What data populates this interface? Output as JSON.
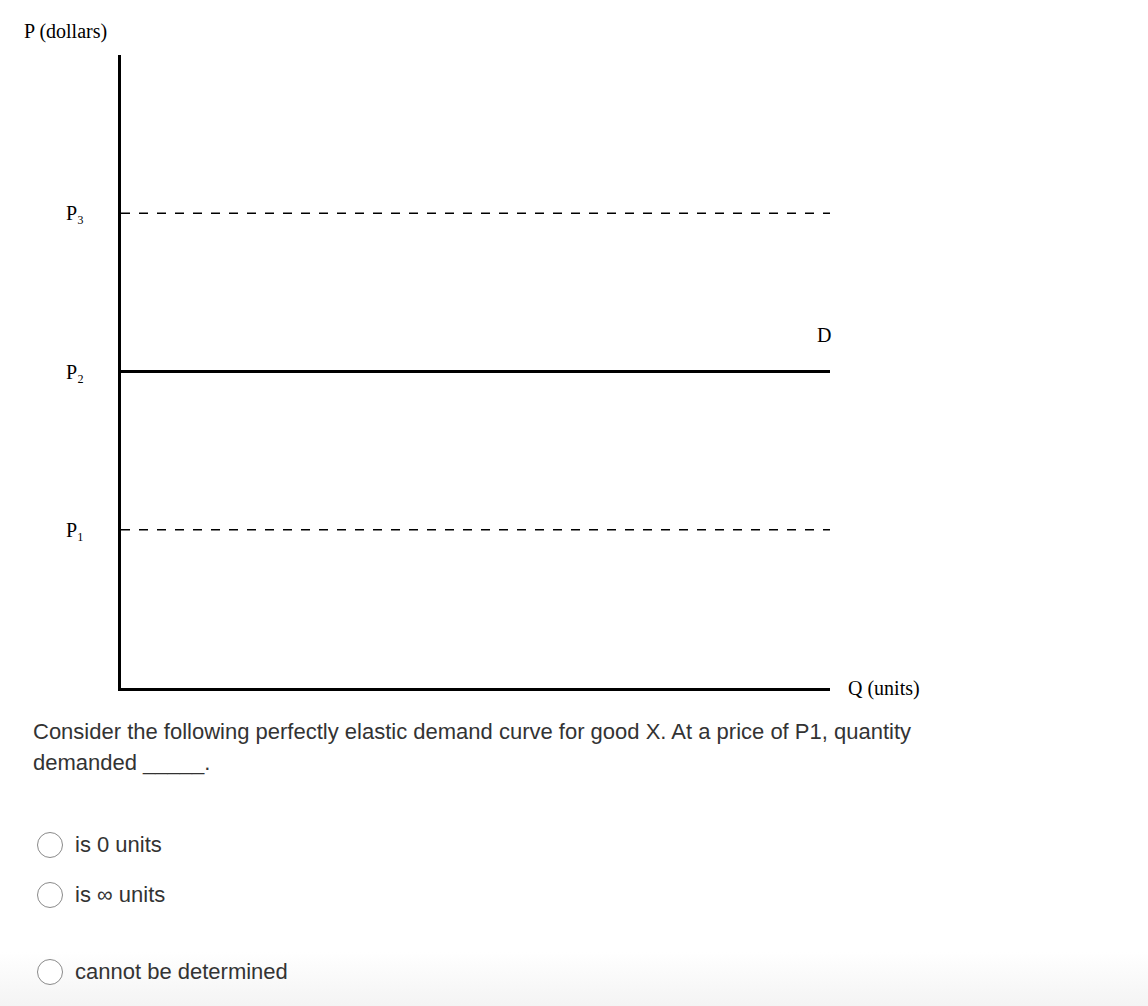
{
  "chart_data": {
    "type": "line",
    "xlabel": "Q (units)",
    "ylabel": "P (dollars)",
    "x": [
      0,
      10
    ],
    "series": [
      {
        "name": "D",
        "values": [
          2,
          2
        ],
        "color": "#000000",
        "line_style": "solid"
      },
      {
        "values": [
          1,
          1
        ],
        "color": "#000000",
        "line_style": "dashed"
      },
      {
        "values": [
          3,
          3
        ],
        "color": "#000000",
        "line_style": "dashed"
      }
    ],
    "xlim": [
      0,
      10
    ],
    "ylim": [
      0,
      4
    ],
    "yticks": [
      {
        "value": 1,
        "label": "P₁"
      },
      {
        "value": 2,
        "label": "P₂"
      },
      {
        "value": 3,
        "label": "P₃"
      }
    ],
    "grid": false,
    "tick_labels": "y"
  },
  "question": {
    "text": "Consider the following perfectly elastic demand curve for good X. At a price of P1, quantity demanded _____.",
    "options": [
      "is 0 units",
      "is ∞ units",
      "cannot be determined"
    ]
  }
}
